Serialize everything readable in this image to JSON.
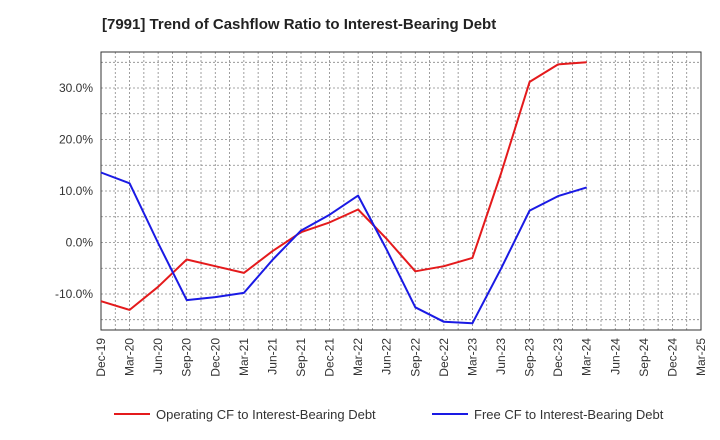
{
  "chart_data": {
    "type": "line",
    "title": "[7991]  Trend of Cashflow Ratio to Interest-Bearing Debt",
    "xlabel": "",
    "ylabel": "",
    "categories": [
      "Dec-19",
      "Mar-20",
      "Jun-20",
      "Sep-20",
      "Dec-20",
      "Mar-21",
      "Jun-21",
      "Sep-21",
      "Dec-21",
      "Mar-22",
      "Jun-22",
      "Sep-22",
      "Dec-22",
      "Mar-23",
      "Jun-23",
      "Sep-23",
      "Dec-23",
      "Mar-24",
      "Jun-24",
      "Sep-24",
      "Dec-24",
      "Mar-25"
    ],
    "ylim": [
      -17,
      37
    ],
    "yticks": [
      -10,
      0,
      10,
      20,
      30
    ],
    "ytick_labels": [
      "-10.0%",
      "0.0%",
      "10.0%",
      "20.0%",
      "30.0%"
    ],
    "grid": true,
    "legend_position": "bottom",
    "series": [
      {
        "name": "Operating CF to Interest-Bearing Debt",
        "color": "#e41a1c",
        "values": [
          -11.4,
          -13.1,
          -8.6,
          -3.3,
          -4.6,
          -5.9,
          -1.7,
          2.0,
          3.9,
          6.4,
          0.7,
          -5.6,
          -4.6,
          -3.0,
          13.4,
          31.2,
          34.6,
          35.0,
          null,
          null,
          null,
          null
        ]
      },
      {
        "name": "Free CF to Interest-Bearing Debt",
        "color": "#1a1ae4",
        "values": [
          13.6,
          11.5,
          -0.1,
          -11.2,
          -10.6,
          -9.8,
          -3.4,
          2.3,
          5.4,
          9.1,
          -1.4,
          -12.6,
          -15.4,
          -15.7,
          -5.1,
          6.2,
          9.0,
          10.7,
          null,
          null,
          null,
          null
        ]
      }
    ]
  }
}
